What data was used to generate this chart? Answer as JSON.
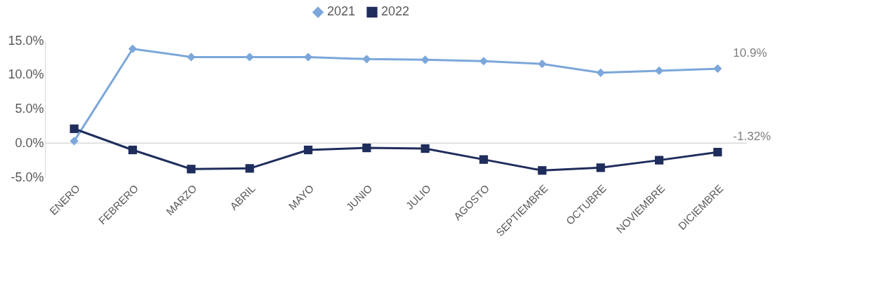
{
  "chart_data": {
    "type": "line",
    "categories": [
      "ENERO",
      "FEBRERO",
      "MARZO",
      "ABRIL",
      "MAYO",
      "JUNIO",
      "JULIO",
      "AGOSTO",
      "SEPTIEMBRE",
      "OCTUBRE",
      "NOVIEMBRE",
      "DICIEMBRE"
    ],
    "series": [
      {
        "name": "2021",
        "color": "#7ca7da",
        "marker": "diamond",
        "values": [
          0.3,
          13.8,
          12.6,
          12.6,
          12.6,
          12.3,
          12.2,
          12.0,
          11.6,
          10.3,
          10.6,
          10.9
        ],
        "value_labels": [
          null,
          null,
          null,
          null,
          null,
          null,
          null,
          null,
          null,
          null,
          null,
          "10.9%"
        ]
      },
      {
        "name": "2022",
        "color": "#1f2d5c",
        "marker": "square",
        "values": [
          2.1,
          -1.0,
          -3.8,
          -3.7,
          -1.0,
          -0.7,
          -0.8,
          -2.4,
          -4.0,
          -3.6,
          -2.5,
          -1.32
        ],
        "value_labels": [
          null,
          null,
          null,
          null,
          null,
          null,
          null,
          null,
          null,
          null,
          null,
          "-1.32%"
        ]
      }
    ],
    "ylim": [
      -5,
      15
    ],
    "yticks": [
      {
        "value": -5,
        "label": "-5.0%"
      },
      {
        "value": 0,
        "label": "0.0%"
      },
      {
        "value": 5,
        "label": "5.0%"
      },
      {
        "value": 10,
        "label": "10.0%"
      },
      {
        "value": 15,
        "label": "15.0%"
      }
    ],
    "ref_lines": [
      {
        "axis": "y",
        "value": 0,
        "color": "#d9d9d9"
      }
    ],
    "grid": false,
    "legend": "top",
    "line_style": "solid"
  }
}
